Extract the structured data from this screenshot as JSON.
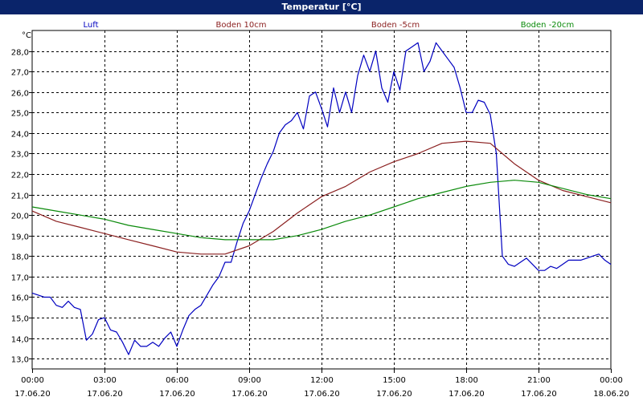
{
  "window": {
    "title": "Temperatur [°C]"
  },
  "chart_data": {
    "type": "line",
    "title": "Temperatur [°C]",
    "ylabel": "°C",
    "xlabel": "",
    "ylim": [
      12.5,
      29.0
    ],
    "xlim": [
      0,
      24
    ],
    "grid": true,
    "legend_position": "top",
    "y_ticks": [
      "13,0",
      "14,0",
      "15,0",
      "16,0",
      "17,0",
      "18,0",
      "19,0",
      "20,0",
      "21,0",
      "22,0",
      "23,0",
      "24,0",
      "25,0",
      "26,0",
      "27,0",
      "28,0"
    ],
    "y_tick_values": [
      13,
      14,
      15,
      16,
      17,
      18,
      19,
      20,
      21,
      22,
      23,
      24,
      25,
      26,
      27,
      28
    ],
    "x_ticks": [
      {
        "time": "00:00",
        "date": "17.06.20",
        "hour": 0
      },
      {
        "time": "03:00",
        "date": "17.06.20",
        "hour": 3
      },
      {
        "time": "06:00",
        "date": "17.06.20",
        "hour": 6
      },
      {
        "time": "09:00",
        "date": "17.06.20",
        "hour": 9
      },
      {
        "time": "12:00",
        "date": "17.06.20",
        "hour": 12
      },
      {
        "time": "15:00",
        "date": "17.06.20",
        "hour": 15
      },
      {
        "time": "18:00",
        "date": "17.06.20",
        "hour": 18
      },
      {
        "time": "21:00",
        "date": "17.06.20",
        "hour": 21
      },
      {
        "time": "00:00",
        "date": "18.06.20",
        "hour": 24
      }
    ],
    "series": [
      {
        "name": "Luft",
        "color": "#0000c0",
        "x": [
          0,
          0.25,
          0.5,
          0.75,
          1.0,
          1.25,
          1.5,
          1.75,
          2.0,
          2.25,
          2.5,
          2.75,
          3.0,
          3.25,
          3.5,
          3.75,
          4.0,
          4.25,
          4.5,
          4.75,
          5.0,
          5.25,
          5.5,
          5.75,
          6.0,
          6.25,
          6.5,
          6.75,
          7.0,
          7.25,
          7.5,
          7.75,
          8.0,
          8.25,
          8.5,
          8.75,
          9.0,
          9.25,
          9.5,
          9.75,
          10.0,
          10.25,
          10.5,
          10.75,
          11.0,
          11.25,
          11.5,
          11.75,
          12.0,
          12.25,
          12.5,
          12.75,
          13.0,
          13.25,
          13.5,
          13.75,
          14.0,
          14.25,
          14.5,
          14.75,
          15.0,
          15.25,
          15.5,
          15.75,
          16.0,
          16.25,
          16.5,
          16.75,
          17.0,
          17.25,
          17.5,
          17.75,
          18.0,
          18.25,
          18.5,
          18.75,
          19.0,
          19.25,
          19.5,
          19.75,
          20.0,
          20.25,
          20.5,
          20.75,
          21.0,
          21.25,
          21.5,
          21.75,
          22.0,
          22.25,
          22.5,
          22.75,
          23.0,
          23.25,
          23.5,
          23.75,
          24.0
        ],
        "values": [
          16.2,
          16.1,
          16.0,
          16.0,
          15.6,
          15.5,
          15.8,
          15.5,
          15.4,
          13.9,
          14.2,
          14.9,
          15.0,
          14.4,
          14.3,
          13.8,
          13.2,
          13.9,
          13.6,
          13.6,
          13.8,
          13.6,
          14.0,
          14.3,
          13.6,
          14.4,
          15.1,
          15.4,
          15.6,
          16.1,
          16.6,
          17.0,
          17.7,
          17.7,
          18.7,
          19.6,
          20.2,
          21.0,
          21.8,
          22.5,
          23.1,
          24.0,
          24.4,
          24.6,
          25.0,
          24.2,
          25.8,
          26.0,
          25.2,
          24.3,
          26.2,
          25.0,
          26.0,
          25.0,
          26.8,
          27.8,
          27.0,
          28.0,
          26.2,
          25.5,
          27.0,
          26.1,
          28.0,
          28.2,
          28.4,
          27.0,
          27.5,
          28.4,
          28.0,
          27.6,
          27.2,
          26.2,
          25.0,
          25.0,
          25.6,
          25.5,
          24.9,
          23.0,
          18.0,
          17.6,
          17.5,
          17.7,
          17.9,
          17.6,
          17.3,
          17.3,
          17.5,
          17.4,
          17.6,
          17.8,
          17.8,
          17.8,
          17.9,
          18.0,
          18.1,
          17.8,
          17.6
        ]
      },
      {
        "name": "Boden 10cm",
        "color": "#8b2020",
        "x": [
          0,
          1,
          2,
          3,
          4,
          5,
          6,
          7,
          8,
          9,
          10,
          11,
          12,
          13,
          14,
          15,
          16,
          17,
          18,
          19,
          20,
          21,
          22,
          23,
          24
        ],
        "values": [
          20.2,
          19.7,
          19.4,
          19.1,
          18.8,
          18.5,
          18.2,
          18.1,
          18.1,
          18.5,
          19.2,
          20.1,
          20.9,
          21.4,
          22.1,
          22.6,
          23.0,
          23.5,
          23.6,
          23.5,
          22.5,
          21.7,
          21.2,
          20.9,
          20.6
        ]
      },
      {
        "name": "Boden -5cm",
        "color": "#8b2020",
        "x": [],
        "values": []
      },
      {
        "name": "Boden -20cm",
        "color": "#0a8a0a",
        "x": [
          0,
          1,
          2,
          3,
          4,
          5,
          6,
          7,
          8,
          9,
          10,
          11,
          12,
          13,
          14,
          15,
          16,
          17,
          18,
          19,
          20,
          21,
          22,
          23,
          24
        ],
        "values": [
          20.4,
          20.2,
          20.0,
          19.8,
          19.5,
          19.3,
          19.1,
          18.9,
          18.8,
          18.8,
          18.8,
          19.0,
          19.3,
          19.7,
          20.0,
          20.4,
          20.8,
          21.1,
          21.4,
          21.6,
          21.7,
          21.6,
          21.3,
          21.0,
          20.8
        ]
      }
    ]
  }
}
